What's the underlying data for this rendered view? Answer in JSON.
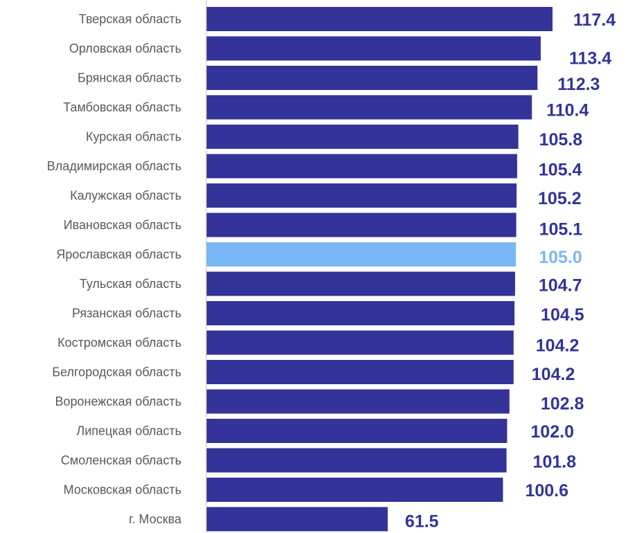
{
  "chart_data": {
    "type": "bar",
    "orientation": "horizontal",
    "categories": [
      "Тверская область",
      "Орловская область",
      "Брянская область",
      "Тамбовская область",
      "Курская область",
      "Владимирская область",
      "Калужская область",
      "Ивановская область",
      "Ярославская область",
      "Тульская область",
      "Рязанская область",
      "Костромская область",
      "Белгородская область",
      "Воронежская область",
      "Липецкая область",
      "Смоленская область",
      "Московская область",
      "г. Москва"
    ],
    "values": [
      117.4,
      113.4,
      112.3,
      110.4,
      105.8,
      105.4,
      105.2,
      105.1,
      105.0,
      104.7,
      104.5,
      104.2,
      104.2,
      102.8,
      102.0,
      101.8,
      100.6,
      61.5
    ],
    "value_labels": [
      "117.4",
      "113.4",
      "112.3",
      "110.4",
      "105.8",
      "105.4",
      "105.2",
      "105.1",
      "105.0",
      "104.7",
      "104.5",
      "104.2",
      "104.2",
      "102.8",
      "102.0",
      "101.8",
      "100.6",
      "61.5"
    ],
    "highlight_category": "Ярославская область",
    "xlim": [
      0,
      117.4
    ],
    "grid": false,
    "legend": "none",
    "colors": {
      "bar": "#333399",
      "highlight": "#7ab8f5",
      "value_text": "#333399",
      "highlight_text": "#7ab8f5",
      "category_text": "#595959",
      "axis": "#bfbfbf"
    }
  }
}
